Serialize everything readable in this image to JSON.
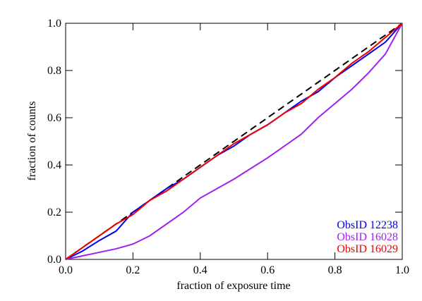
{
  "chart_data": {
    "type": "line",
    "x_label": "fraction of exposure time",
    "y_label": "fraction of counts",
    "x": [
      0,
      0.05,
      0.1,
      0.15,
      0.2,
      0.25,
      0.3,
      0.35,
      0.4,
      0.45,
      0.5,
      0.55,
      0.6,
      0.65,
      0.7,
      0.75,
      0.8,
      0.85,
      0.9,
      0.95,
      1
    ],
    "series": [
      {
        "color": "#000000",
        "dash": true,
        "values": [
          0,
          0.05,
          0.1,
          0.15,
          0.2,
          0.25,
          0.3,
          0.35,
          0.4,
          0.45,
          0.5,
          0.55,
          0.6,
          0.65,
          0.7,
          0.75,
          0.8,
          0.85,
          0.9,
          0.95,
          1
        ]
      },
      {
        "name": "ObsID 12238",
        "color": "#0000ee",
        "values": [
          0,
          0.035,
          0.08,
          0.12,
          0.2,
          0.25,
          0.3,
          0.34,
          0.39,
          0.44,
          0.48,
          0.53,
          0.57,
          0.62,
          0.67,
          0.71,
          0.77,
          0.82,
          0.87,
          0.92,
          1
        ]
      },
      {
        "name": "ObsID 16028",
        "color": "#a020f0",
        "values": [
          0,
          0.015,
          0.03,
          0.045,
          0.065,
          0.1,
          0.15,
          0.2,
          0.26,
          0.3,
          0.34,
          0.385,
          0.43,
          0.48,
          0.53,
          0.6,
          0.66,
          0.72,
          0.79,
          0.87,
          1
        ]
      },
      {
        "name": "ObsID 16029",
        "color": "#ee0000",
        "values": [
          0,
          0.05,
          0.1,
          0.15,
          0.19,
          0.25,
          0.29,
          0.34,
          0.39,
          0.44,
          0.49,
          0.53,
          0.57,
          0.62,
          0.66,
          0.72,
          0.77,
          0.83,
          0.88,
          0.94,
          1
        ]
      }
    ],
    "xlim": [
      0,
      1
    ],
    "ylim": [
      0,
      1
    ],
    "xticks": [
      {
        "value": 0,
        "label": "0.0"
      },
      0.2,
      0.4,
      0.6,
      0.8,
      {
        "value": 1,
        "label": "1.0"
      }
    ],
    "yticks": [
      {
        "value": 0,
        "label": "0.0"
      },
      0.2,
      0.4,
      0.6,
      0.8,
      {
        "value": 1,
        "label": "1.0"
      }
    ],
    "legend": "bottom-right"
  }
}
